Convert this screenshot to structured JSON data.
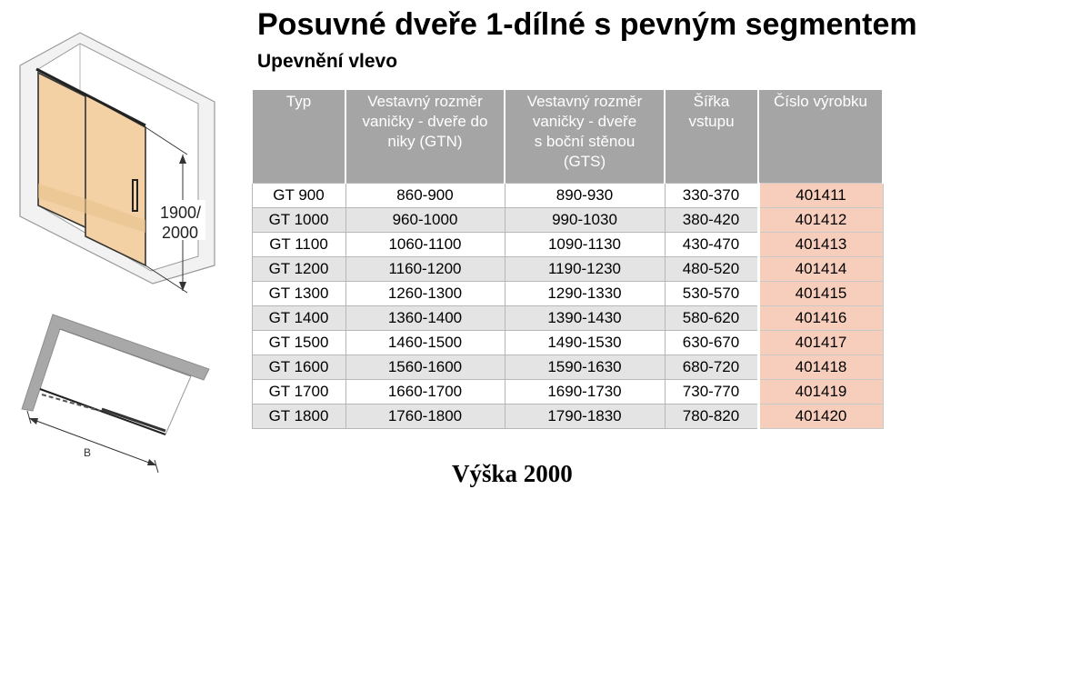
{
  "title": "Posuvné dveře 1-dílné s pevným segmentem",
  "subtitle": "Upevnění vlevo",
  "diagram": {
    "height_label_line1": "1900/",
    "height_label_line2": "2000",
    "width_label": "B",
    "door_color": "#f4d1a4"
  },
  "table": {
    "headers": [
      [
        "Typ"
      ],
      [
        "Vestavný rozměr",
        "vaničky - dveře do",
        "niky (GTN)"
      ],
      [
        "Vestavný rozměr",
        "vaničky - dveře",
        "s boční stěnou",
        "(GTS)"
      ],
      [
        "Šířka",
        "vstupu"
      ],
      [
        "Číslo výrobku"
      ]
    ],
    "rows": [
      [
        "GT 900",
        "860-900",
        "890-930",
        "330-370",
        "401411"
      ],
      [
        "GT 1000",
        "960-1000",
        "990-1030",
        "380-420",
        "401412"
      ],
      [
        "GT 1100",
        "1060-1100",
        "1090-1130",
        "430-470",
        "401413"
      ],
      [
        "GT 1200",
        "1160-1200",
        "1190-1230",
        "480-520",
        "401414"
      ],
      [
        "GT 1300",
        "1260-1300",
        "1290-1330",
        "530-570",
        "401415"
      ],
      [
        "GT 1400",
        "1360-1400",
        "1390-1430",
        "580-620",
        "401416"
      ],
      [
        "GT 1500",
        "1460-1500",
        "1490-1530",
        "630-670",
        "401417"
      ],
      [
        "GT 1600",
        "1560-1600",
        "1590-1630",
        "680-720",
        "401418"
      ],
      [
        "GT 1700",
        "1660-1700",
        "1690-1730",
        "730-770",
        "401419"
      ],
      [
        "GT 1800",
        "1760-1800",
        "1790-1830",
        "780-820",
        "401420"
      ]
    ],
    "header_color": "#a5a5a6",
    "alt_row_color": "#e4e4e4",
    "code_cell_color": "#f7cdbc"
  },
  "height_note": "Výška 2000"
}
